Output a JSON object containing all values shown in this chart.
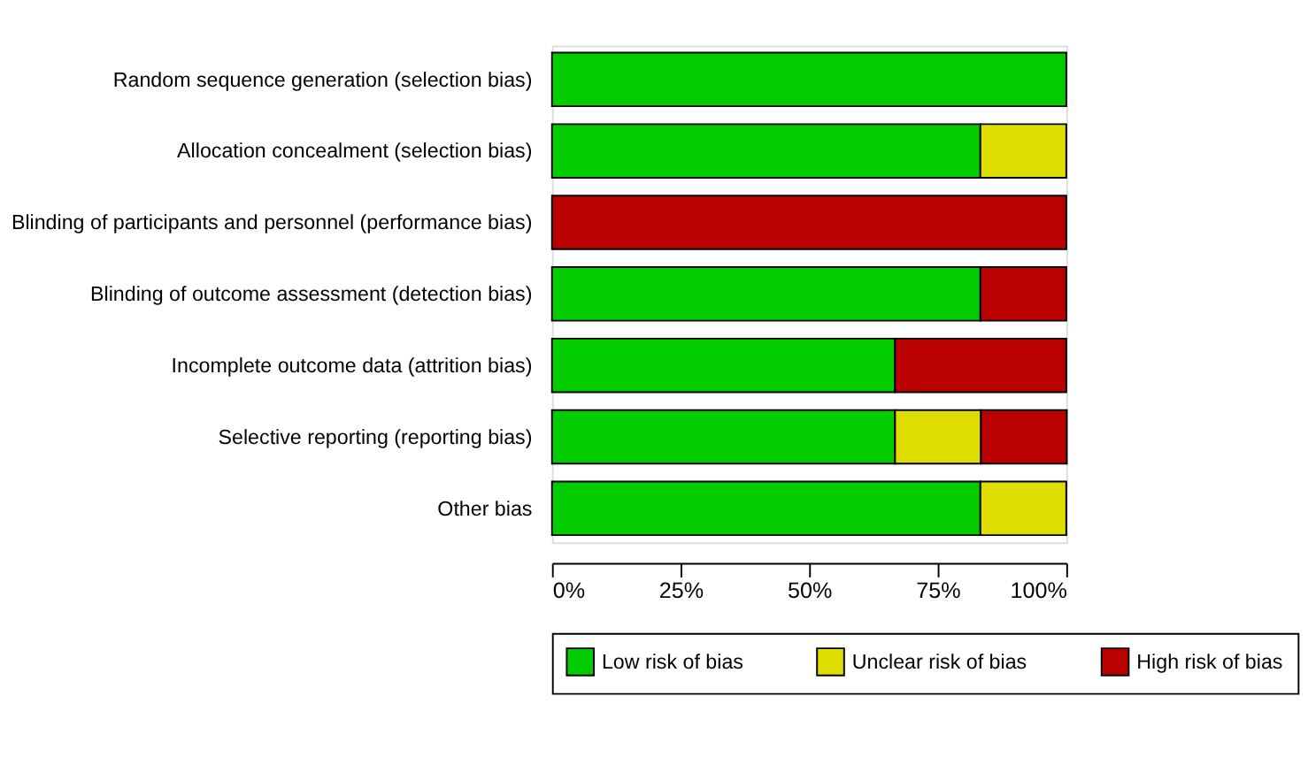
{
  "chart_data": {
    "type": "bar",
    "orientation": "horizontal",
    "stacked": true,
    "categories": [
      "Random sequence generation (selection bias)",
      "Allocation concealment (selection bias)",
      "Blinding of participants and personnel (performance bias)",
      "Blinding of outcome assessment (detection bias)",
      "Incomplete outcome data (attrition bias)",
      "Selective reporting (reporting bias)",
      "Other bias"
    ],
    "series": [
      {
        "name": "Low risk of bias",
        "color": "#00cc00",
        "values": [
          100,
          83.3,
          null,
          83.3,
          66.7,
          66.7,
          83.3
        ]
      },
      {
        "name": "Unclear risk of bias",
        "color": "#dddd00",
        "values": [
          null,
          16.7,
          null,
          null,
          null,
          16.7,
          16.7
        ]
      },
      {
        "name": "High risk of bias",
        "color": "#bb0000",
        "values": [
          null,
          null,
          100,
          16.7,
          33.3,
          16.7,
          null
        ]
      }
    ],
    "xlim": [
      0,
      100
    ],
    "xticks": [
      {
        "value": 0,
        "label": "0%"
      },
      {
        "value": 25,
        "label": "25%"
      },
      {
        "value": 50,
        "label": "50%"
      },
      {
        "value": 75,
        "label": "75%"
      },
      {
        "value": 100,
        "label": "100%"
      }
    ],
    "grid": false,
    "legend": "bottom"
  }
}
